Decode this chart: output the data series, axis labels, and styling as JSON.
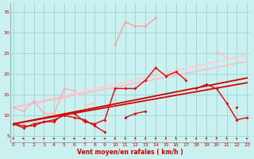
{
  "background_color": "#caf0f0",
  "grid_color": "#a0d8d8",
  "xlabel": "Vent moyen/en rafales ( km/h )",
  "xlabel_color": "#cc0000",
  "tick_color": "#cc0000",
  "xlim": [
    -0.3,
    23.3
  ],
  "ylim": [
    3.5,
    37
  ],
  "yticks": [
    5,
    10,
    15,
    20,
    25,
    30,
    35
  ],
  "xticks": [
    0,
    1,
    2,
    3,
    4,
    5,
    6,
    7,
    8,
    9,
    10,
    11,
    12,
    13,
    14,
    15,
    16,
    17,
    18,
    19,
    20,
    21,
    22,
    23
  ],
  "series": [
    {
      "color": "#ff9999",
      "lw": 0.9,
      "marker": "D",
      "ms": 1.8,
      "zorder": 4,
      "y": [
        null,
        null,
        null,
        null,
        null,
        null,
        null,
        null,
        null,
        null,
        27.0,
        32.5,
        31.5,
        31.5,
        33.5,
        null,
        null,
        null,
        null,
        null,
        null,
        null,
        null,
        null
      ]
    },
    {
      "color": "#ffaaaa",
      "lw": 0.9,
      "marker": "D",
      "ms": 1.8,
      "zorder": 4,
      "y": [
        12.0,
        11.0,
        13.5,
        10.5,
        10.5,
        16.5,
        16.0,
        null,
        null,
        null,
        null,
        null,
        null,
        null,
        null,
        null,
        null,
        null,
        null,
        null,
        25.0,
        null,
        null,
        null
      ]
    },
    {
      "color": "#ffbbbb",
      "lw": 0.9,
      "marker": "^",
      "ms": 2.0,
      "zorder": 4,
      "y": [
        12.0,
        null,
        null,
        null,
        null,
        14.0,
        null,
        12.5,
        13.0,
        null,
        null,
        null,
        null,
        null,
        null,
        null,
        null,
        null,
        null,
        null,
        25.5,
        24.0,
        null,
        null
      ]
    },
    {
      "color": "#ffcccc",
      "lw": 1.3,
      "marker": null,
      "ms": 0,
      "zorder": 2,
      "y": [
        12.0,
        12.55,
        13.1,
        13.65,
        14.2,
        14.75,
        15.3,
        15.85,
        16.4,
        16.95,
        17.5,
        18.05,
        18.6,
        19.15,
        19.7,
        20.25,
        20.8,
        21.35,
        21.9,
        22.45,
        23.0,
        23.55,
        24.1,
        24.65
      ]
    },
    {
      "color": "#ffbbcc",
      "lw": 1.3,
      "marker": null,
      "ms": 0,
      "zorder": 2,
      "y": [
        12.0,
        12.48,
        12.96,
        13.44,
        13.92,
        14.4,
        14.88,
        15.36,
        15.84,
        16.32,
        16.8,
        17.28,
        17.76,
        18.24,
        18.72,
        19.2,
        19.68,
        20.16,
        20.64,
        21.12,
        21.6,
        22.08,
        22.56,
        23.04
      ]
    },
    {
      "color": "#cc0000",
      "lw": 1.3,
      "marker": null,
      "ms": 0,
      "zorder": 3,
      "y": [
        8.0,
        8.48,
        8.96,
        9.44,
        9.92,
        10.4,
        10.88,
        11.36,
        11.84,
        12.32,
        12.8,
        13.28,
        13.76,
        14.24,
        14.72,
        15.2,
        15.68,
        16.16,
        16.64,
        17.12,
        17.6,
        18.08,
        18.56,
        19.04
      ]
    },
    {
      "color": "#dd0000",
      "lw": 1.3,
      "marker": null,
      "ms": 0,
      "zorder": 3,
      "y": [
        8.0,
        8.43,
        8.86,
        9.29,
        9.72,
        10.15,
        10.58,
        11.01,
        11.44,
        11.87,
        12.3,
        12.73,
        13.16,
        13.59,
        14.02,
        14.45,
        14.88,
        15.31,
        15.74,
        16.17,
        16.6,
        17.03,
        17.46,
        17.89
      ]
    },
    {
      "color": "#ee0000",
      "lw": 1.0,
      "marker": "D",
      "ms": 2.0,
      "zorder": 5,
      "y": [
        8.0,
        7.5,
        7.5,
        8.5,
        8.5,
        10.5,
        10.5,
        8.5,
        8.0,
        9.0,
        16.5,
        16.5,
        16.5,
        18.5,
        21.5,
        19.5,
        20.5,
        18.5,
        null,
        null,
        16.5,
        13.0,
        9.0,
        9.5
      ]
    },
    {
      "color": "#cc1111",
      "lw": 1.0,
      "marker": "D",
      "ms": 2.0,
      "zorder": 5,
      "y": [
        8.0,
        7.0,
        8.0,
        8.5,
        9.0,
        10.0,
        9.5,
        9.0,
        7.5,
        6.0,
        null,
        9.5,
        10.5,
        11.0,
        null,
        null,
        null,
        null,
        16.5,
        17.5,
        16.5,
        null,
        12.0,
        null
      ]
    }
  ],
  "wind_dirs": [
    225,
    225,
    225,
    225,
    225,
    225,
    225,
    225,
    225,
    225,
    270,
    270,
    270,
    270,
    270,
    270,
    270,
    270,
    270,
    270,
    270,
    270,
    225,
    225
  ]
}
